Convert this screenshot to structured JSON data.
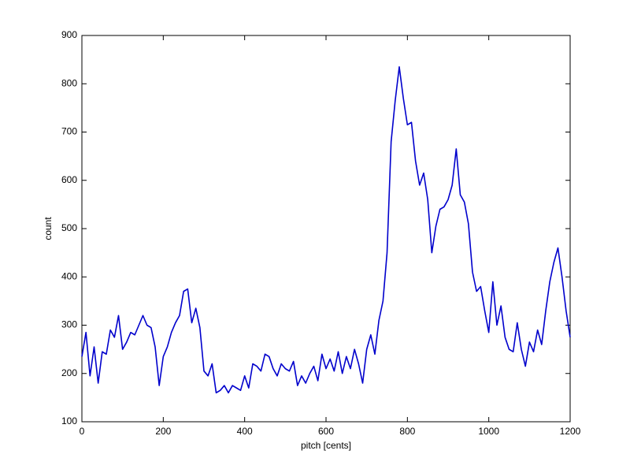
{
  "chart_data": {
    "type": "line",
    "x_label": "pitch [cents]",
    "y_label": "count",
    "x": [
      0,
      10,
      20,
      30,
      40,
      50,
      60,
      70,
      80,
      90,
      100,
      110,
      120,
      130,
      140,
      150,
      160,
      170,
      180,
      190,
      200,
      210,
      220,
      230,
      240,
      250,
      260,
      270,
      280,
      290,
      300,
      310,
      320,
      330,
      340,
      350,
      360,
      370,
      380,
      390,
      400,
      410,
      420,
      430,
      440,
      450,
      460,
      470,
      480,
      490,
      500,
      510,
      520,
      530,
      540,
      550,
      560,
      570,
      580,
      590,
      600,
      610,
      620,
      630,
      640,
      650,
      660,
      670,
      680,
      690,
      700,
      710,
      720,
      730,
      740,
      750,
      760,
      770,
      780,
      790,
      800,
      810,
      820,
      830,
      840,
      850,
      860,
      870,
      880,
      890,
      900,
      910,
      920,
      930,
      940,
      950,
      960,
      970,
      980,
      990,
      1000,
      1010,
      1020,
      1030,
      1040,
      1050,
      1060,
      1070,
      1080,
      1090,
      1100,
      1110,
      1120,
      1130,
      1140,
      1150,
      1160,
      1170,
      1180,
      1190,
      1200
    ],
    "series": [
      {
        "name": "count",
        "color": "#0000cc",
        "values": [
          235,
          285,
          195,
          255,
          180,
          245,
          240,
          290,
          275,
          320,
          250,
          265,
          285,
          280,
          300,
          320,
          300,
          295,
          255,
          175,
          235,
          255,
          285,
          305,
          320,
          370,
          375,
          305,
          335,
          295,
          205,
          195,
          220,
          160,
          165,
          175,
          160,
          175,
          170,
          165,
          195,
          170,
          220,
          215,
          205,
          240,
          235,
          210,
          195,
          220,
          210,
          205,
          225,
          175,
          195,
          180,
          200,
          215,
          185,
          240,
          210,
          230,
          205,
          245,
          200,
          235,
          210,
          250,
          220,
          180,
          250,
          280,
          240,
          310,
          350,
          450,
          680,
          765,
          835,
          770,
          715,
          720,
          640,
          590,
          615,
          560,
          450,
          505,
          540,
          545,
          560,
          590,
          665,
          570,
          555,
          510,
          410,
          370,
          380,
          330,
          285,
          390,
          300,
          340,
          275,
          250,
          245,
          305,
          250,
          215,
          265,
          245,
          290,
          260,
          330,
          390,
          430,
          460,
          400,
          330,
          275
        ]
      }
    ],
    "xlim": [
      0,
      1200
    ],
    "xticks": [
      0,
      200,
      400,
      600,
      800,
      1000,
      1200
    ],
    "ylim": [
      100,
      900
    ],
    "yticks": [
      100,
      200,
      300,
      400,
      500,
      600,
      700,
      800,
      900
    ],
    "grid": false
  }
}
